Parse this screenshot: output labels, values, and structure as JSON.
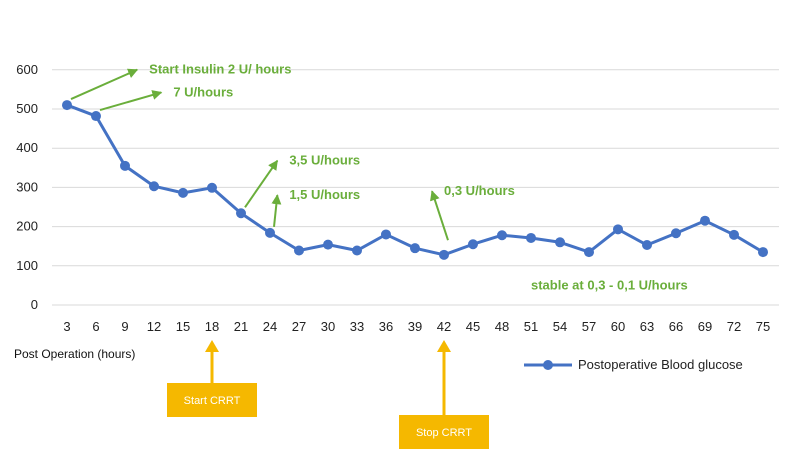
{
  "chart_data": {
    "type": "line",
    "title": "",
    "xlabel": "Post Operation (hours)",
    "ylabel": "",
    "ylim": [
      0,
      600
    ],
    "yticks": [
      0,
      100,
      200,
      300,
      400,
      500,
      600
    ],
    "grid": "horizontal",
    "legend_position": "bottom-right",
    "x": [
      3,
      6,
      9,
      12,
      15,
      18,
      21,
      24,
      27,
      30,
      33,
      36,
      39,
      42,
      45,
      48,
      51,
      54,
      57,
      60,
      63,
      66,
      69,
      72,
      75
    ],
    "series": [
      {
        "name": "Postoperative Blood glucose",
        "color": "#4472c4",
        "values": [
          510,
          482,
          355,
          303,
          286,
          299,
          234,
          184,
          139,
          154,
          139,
          180,
          145,
          128,
          155,
          178,
          171,
          160,
          135,
          193,
          153,
          183,
          215,
          179,
          135
        ]
      }
    ],
    "annotations": [
      {
        "text": "Start Insulin 2 U/ hours",
        "at_x": 3,
        "at_y": 510,
        "text_x": 11.5,
        "text_y": 590
      },
      {
        "text": "7 U/hours",
        "at_x": 6,
        "at_y": 482,
        "text_x": 14,
        "text_y": 532
      },
      {
        "text": "3,5 U/hours",
        "at_x": 21,
        "at_y": 234,
        "text_x": 26,
        "text_y": 358
      },
      {
        "text": "1,5 U/hours",
        "at_x": 24,
        "at_y": 184,
        "text_x": 26,
        "text_y": 270
      },
      {
        "text": "0,3 U/hours",
        "at_x": 42,
        "at_y": 150,
        "text_x": 42,
        "text_y": 280
      },
      {
        "text": "stable at 0,3 - 0,1  U/hours",
        "text_x": 51,
        "text_y": 40
      }
    ],
    "events": [
      {
        "label": "Start CRRT",
        "at_x": 18
      },
      {
        "label": "Stop CRRT",
        "at_x": 42
      }
    ],
    "colors": {
      "line": "#4472c4",
      "annotation": "#6aae3b",
      "event": "#f5b800",
      "grid": "#d9d9d9"
    }
  }
}
